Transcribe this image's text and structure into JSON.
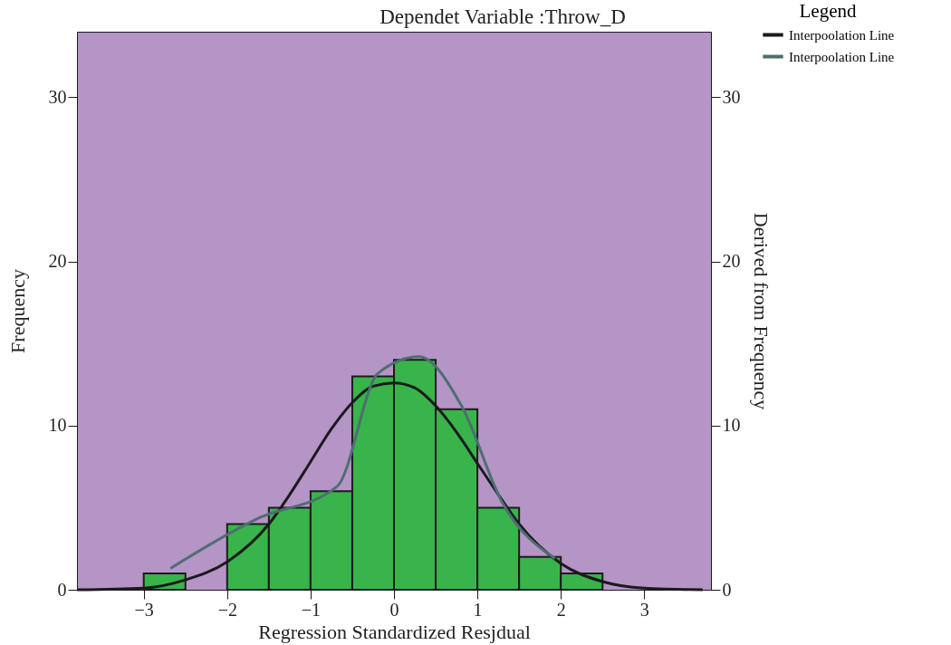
{
  "chart_data": {
    "type": "histogram",
    "title": "Dependet Variable :Throw_D",
    "xlabel": "Regression Standardized Resjdual",
    "ylabel": "Frequency",
    "y2label": "Derived  from  Frequency",
    "bins": [
      -3,
      -2.5,
      -2,
      -1.5,
      -1,
      -0.5,
      0,
      0.5,
      1,
      1.5,
      2,
      2.5
    ],
    "values": [
      1,
      0,
      4,
      5,
      6,
      13,
      14,
      11,
      5,
      2,
      1
    ],
    "color": "#38b44a",
    "series": [
      {
        "name": "Interpoolation Line",
        "type": "line",
        "color": "#1c1a1c",
        "x": [
          -3.8,
          -3,
          -2.5,
          -2,
          -1.5,
          -1.25,
          -1,
          -0.75,
          -0.5,
          -0.25,
          0,
          0.25,
          0.5,
          0.75,
          1,
          1.25,
          1.5,
          2,
          2.5,
          3,
          3.7
        ],
        "values": [
          0,
          0.1,
          0.6,
          1.7,
          4,
          5.8,
          7.8,
          9.8,
          11.4,
          12.4,
          12.6,
          12.3,
          11.2,
          9.6,
          7.7,
          5.8,
          4,
          1.6,
          0.5,
          0.1,
          0
        ]
      },
      {
        "name": "Interpoolation Line",
        "type": "line",
        "color": "#4e6e72",
        "x": [
          -2.68,
          -1.65,
          -0.68,
          -0.19,
          0.3,
          0.81,
          1.3,
          1.93
        ],
        "values": [
          1.3,
          4.3,
          6.3,
          13.2,
          14.2,
          11.2,
          5.3,
          1.9
        ]
      }
    ],
    "xlim": [
      -3.8,
      3.8
    ],
    "xticks": [
      -3,
      -2,
      -1,
      0,
      1,
      2,
      3
    ],
    "ylim": [
      0,
      34
    ],
    "yticks": [
      0,
      10,
      20,
      30
    ],
    "y2lim": [
      0,
      34
    ],
    "y2ticks": [
      0,
      10,
      20,
      30
    ],
    "legend": "top right",
    "legend_title": "Legend"
  }
}
